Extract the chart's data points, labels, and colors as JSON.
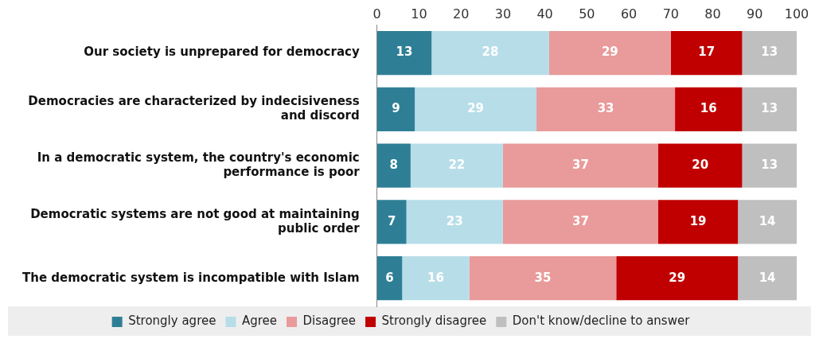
{
  "chart_data": {
    "type": "bar",
    "orientation": "horizontal",
    "stacked": true,
    "data_labels": true,
    "grid": false,
    "legend": "bottom",
    "categories": [
      "Our society is unprepared for democracy",
      "Democracies are characterized by indecisiveness and discord",
      "In a democratic system, the country's economic performance is poor",
      "Democratic systems are not good at maintaining public order",
      "The democratic system is incompatible with Islam"
    ],
    "xlim": [
      0,
      100
    ],
    "xticks": [
      0,
      10,
      20,
      30,
      40,
      50,
      60,
      70,
      80,
      90,
      100
    ],
    "series": [
      {
        "name": "Strongly agree",
        "color": "#2e7f96",
        "values": [
          13,
          9,
          8,
          7,
          6
        ]
      },
      {
        "name": "Agree",
        "color": "#b7dde8",
        "values": [
          28,
          29,
          22,
          23,
          16
        ]
      },
      {
        "name": "Disagree",
        "color": "#e99a9a",
        "values": [
          29,
          33,
          37,
          37,
          35
        ]
      },
      {
        "name": "Strongly disagree",
        "color": "#c00000",
        "values": [
          17,
          16,
          20,
          19,
          29
        ]
      },
      {
        "name": "Don't know/decline to answer",
        "color": "#bfbfbf",
        "values": [
          13,
          13,
          13,
          14,
          14
        ]
      }
    ]
  }
}
